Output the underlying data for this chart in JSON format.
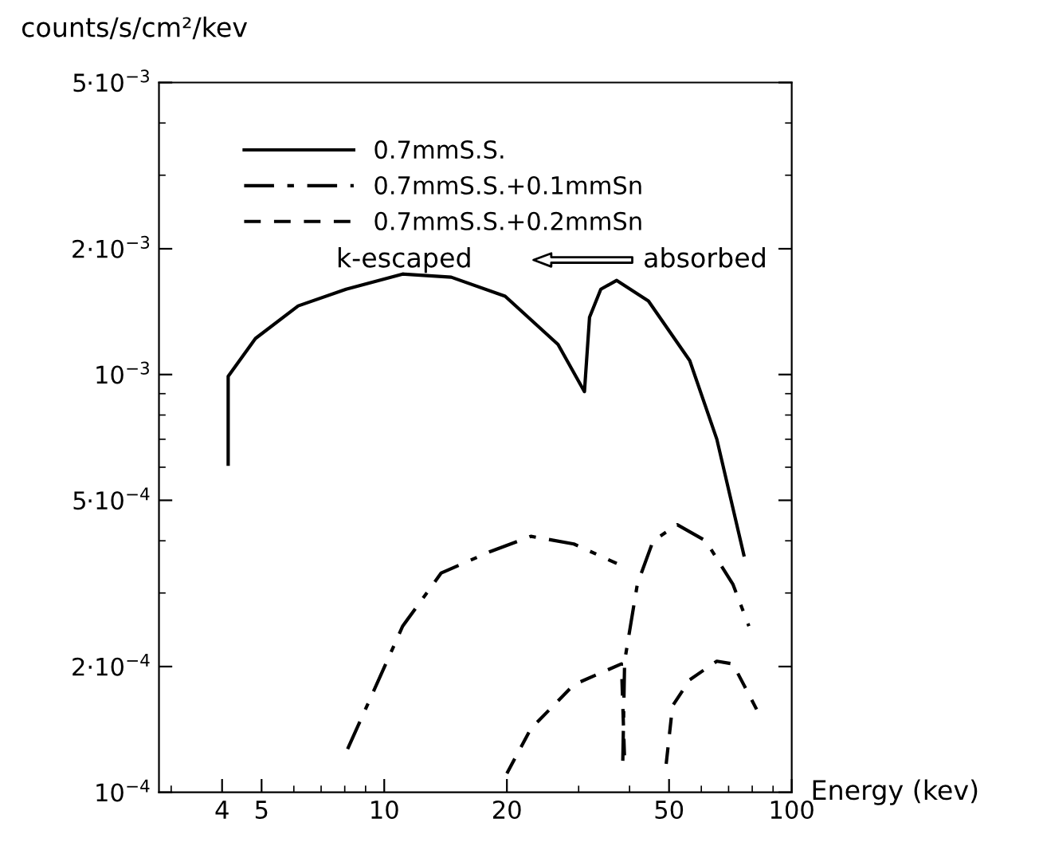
{
  "chart_data": {
    "type": "line",
    "xlabel": "Energy (kev)",
    "ylabel": "counts/s/cm²/kev",
    "log": "xy",
    "xlim": [
      2.8,
      100
    ],
    "ylim": [
      0.0001,
      0.005
    ],
    "xticks": [
      4,
      5,
      10,
      20,
      50,
      100
    ],
    "yticks": [
      {
        "value": 0.0001,
        "label": "10$^{−4}$"
      },
      {
        "value": 0.0002,
        "label": "2·10$^{−4}$"
      },
      {
        "value": 0.0005,
        "label": "5·10$^{−4}$"
      },
      {
        "value": 0.001,
        "label": "10$^{−3}$"
      },
      {
        "value": 0.002,
        "label": "2·10$^{−3}$"
      },
      {
        "value": 0.005,
        "label": "5·10$^{−3}$"
      }
    ],
    "grid": false,
    "legend": "top left",
    "marker": "none",
    "annotations": [
      "k-escaped",
      "absorbed"
    ],
    "series": [
      {
        "name": "0.7mmS.S.",
        "color": "#000000",
        "line_style": "solid",
        "x": [
          4.14,
          4.14,
          4.83,
          6.15,
          8.06,
          11.1,
          14.6,
          19.8,
          26.7,
          31.0,
          31.9,
          34.0,
          37.2,
          44.5,
          56.2,
          65.5,
          76.3
        ],
        "values": [
          0.00061,
          0.00099,
          0.00122,
          0.00146,
          0.0016,
          0.00174,
          0.00171,
          0.00154,
          0.00118,
          0.00091,
          0.00137,
          0.0016,
          0.00168,
          0.0015,
          0.00108,
          0.0007,
          0.00037
        ]
      },
      {
        "name": "0.7mmS.S.+0.1mmSn",
        "color": "#000000",
        "line_style": "dashdot",
        "x": [
          8.13,
          9.3,
          11.1,
          13.8,
          18.1,
          22.9,
          29.2,
          37.2,
          null,
          38.5,
          38.9,
          41.8,
          45.7,
          52.4,
          61.5,
          71.7,
          78.5
        ],
        "values": [
          0.000127,
          0.00017,
          0.00025,
          0.000335,
          0.000376,
          0.00041,
          0.000393,
          0.000353,
          null,
          0.000119,
          0.000206,
          0.000315,
          0.0004,
          0.000437,
          0.0004,
          0.000315,
          0.00025
        ]
      },
      {
        "name": "0.7mmS.S.+0.2mmSn",
        "color": "#000000",
        "line_style": "dashed",
        "x": [
          20.0,
          22.9,
          29.2,
          38.2,
          38.9,
          null,
          49.2,
          51.0,
          56.2,
          65.5,
          71.7,
          82.0
        ],
        "values": [
          0.000111,
          0.000142,
          0.000181,
          0.000203,
          0.000119,
          null,
          0.000117,
          0.000161,
          0.000186,
          0.000206,
          0.000203,
          0.000158
        ]
      }
    ]
  }
}
